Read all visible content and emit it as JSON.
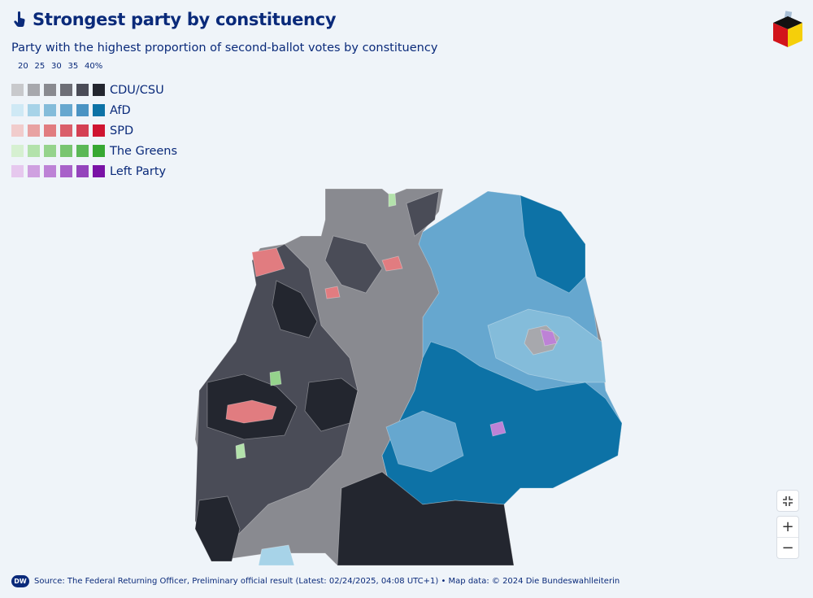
{
  "header": {
    "title": "Strongest party by constituency",
    "icon": "hand-pointer-icon"
  },
  "subtitle": "Party with the highest proportion of second-ballot votes by constituency",
  "legend": {
    "ticks": [
      "20",
      "25",
      "30",
      "35",
      "40%"
    ],
    "parties": [
      {
        "name": "CDU/CSU",
        "colors": [
          "#c8c9cc",
          "#a7a8ad",
          "#898a90",
          "#6d6e76",
          "#4a4c57",
          "#23262f"
        ]
      },
      {
        "name": "AfD",
        "colors": [
          "#cfe9f5",
          "#a7d3e8",
          "#84bcda",
          "#66a7cf",
          "#4a93c3",
          "#0d72a6"
        ]
      },
      {
        "name": "SPD",
        "colors": [
          "#f1cccc",
          "#e8a2a2",
          "#e17c80",
          "#da5f6a",
          "#d44053",
          "#cf1430"
        ]
      },
      {
        "name": "The Greens",
        "colors": [
          "#d6f0d1",
          "#b3e2ab",
          "#95d38c",
          "#78c56f",
          "#5bb856",
          "#37a832"
        ]
      },
      {
        "name": "Left Party",
        "colors": [
          "#e6c8ee",
          "#cfa0e0",
          "#bd82d6",
          "#a861c9",
          "#9444bc",
          "#7a12a6"
        ]
      }
    ]
  },
  "controls": {
    "fullscreen": "⛶",
    "zoom_in": "+",
    "zoom_out": "−"
  },
  "footer": {
    "source": "Source: The Federal Returning Officer, Preliminary official result (Latest: 02/24/2025, 04:08 UTC+1) • Map data: © 2024 Die Bundeswahlleiterin",
    "logo_text": "DW"
  }
}
